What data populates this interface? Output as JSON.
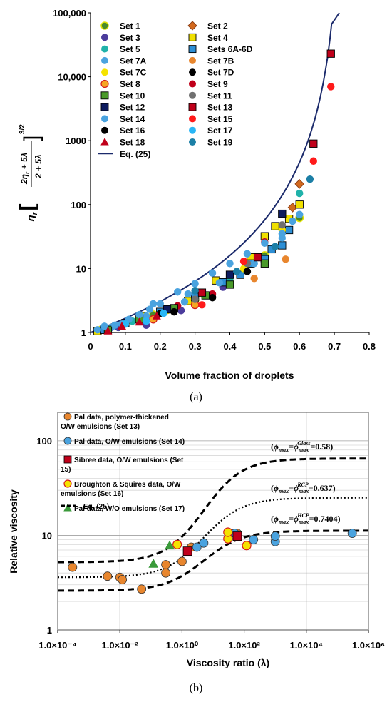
{
  "chart_data": [
    {
      "type": "scatter",
      "panel_label": "(a)",
      "xlabel": "Volume fraction of droplets",
      "ylabel_text": "η_r [(2η_r + 5λ)/(2 + 5λ)]^{3/2}",
      "xlim": [
        0,
        0.8
      ],
      "ylim": [
        1,
        100000
      ],
      "yscale": "log",
      "x_ticks": [
        "0",
        "0.1",
        "0.2",
        "0.3",
        "0.4",
        "0.5",
        "0.6",
        "0.7",
        "0.8"
      ],
      "y_ticks": [
        "1",
        "10",
        "100",
        "1000",
        "10,000",
        "100,000"
      ],
      "grid": false,
      "legend_position": "top-left inside",
      "series": [
        {
          "name": "Set 1",
          "color": "#4a8a2a",
          "marker": "circle-yellow",
          "points": [
            [
              0.03,
              1.1
            ],
            [
              0.18,
              1.9
            ],
            [
              0.3,
              3.2
            ],
            [
              0.4,
              6.1
            ],
            [
              0.5,
              16
            ],
            [
              0.6,
              62
            ]
          ]
        },
        {
          "name": "Set 2",
          "color": "#d2691e",
          "marker": "diamond",
          "points": [
            [
              0.6,
              210
            ],
            [
              0.58,
              90
            ]
          ]
        },
        {
          "name": "Set 3",
          "color": "#4b3c9c",
          "marker": "circle",
          "points": [
            [
              0.02,
              1.05
            ],
            [
              0.08,
              1.2
            ],
            [
              0.16,
              1.3
            ],
            [
              0.26,
              2.2
            ],
            [
              0.38,
              5.1
            ],
            [
              0.5,
              14
            ]
          ]
        },
        {
          "name": "Set 4",
          "color": "#f0e000",
          "marker": "square",
          "points": [
            [
              0.02,
              1.05
            ],
            [
              0.15,
              1.8
            ],
            [
              0.28,
              3.1
            ],
            [
              0.36,
              6.5
            ],
            [
              0.46,
              15
            ],
            [
              0.5,
              32
            ],
            [
              0.53,
              46
            ],
            [
              0.57,
              60
            ],
            [
              0.6,
              100
            ]
          ]
        },
        {
          "name": "Set 5",
          "color": "#20b2aa",
          "marker": "circle",
          "points": [
            [
              0.12,
              1.5
            ],
            [
              0.25,
              2.6
            ],
            [
              0.4,
              6.8
            ],
            [
              0.52,
              20
            ],
            [
              0.6,
              150
            ]
          ]
        },
        {
          "name": "Sets 6A-6D",
          "color": "#2d8fd5",
          "marker": "square",
          "points": [
            [
              0.04,
              1.1
            ],
            [
              0.1,
              1.4
            ],
            [
              0.2,
              2.1
            ],
            [
              0.3,
              3.6
            ],
            [
              0.38,
              6.1
            ],
            [
              0.43,
              8
            ],
            [
              0.46,
              12
            ],
            [
              0.5,
              14
            ],
            [
              0.52,
              20
            ],
            [
              0.55,
              23
            ],
            [
              0.57,
              40
            ]
          ]
        },
        {
          "name": "Set 7A",
          "color": "#4aa3df",
          "marker": "circle",
          "points": [
            [
              0.06,
              1.2
            ],
            [
              0.16,
              1.8
            ],
            [
              0.27,
              3
            ],
            [
              0.37,
              6
            ],
            [
              0.47,
              12
            ],
            [
              0.55,
              30
            ]
          ]
        },
        {
          "name": "Set 7B",
          "color": "#e8862e",
          "marker": "circle",
          "points": [
            [
              0.45,
              12
            ],
            [
              0.47,
              7
            ],
            [
              0.56,
              14
            ]
          ]
        },
        {
          "name": "Set 7C",
          "color": "#f5e300",
          "marker": "circle",
          "points": [
            [
              0.22,
              2.2
            ],
            [
              0.32,
              4
            ],
            [
              0.44,
              10
            ],
            [
              0.55,
              40
            ]
          ]
        },
        {
          "name": "Set 7D",
          "color": "#000000",
          "marker": "circle",
          "points": [
            [
              0.2,
              2
            ],
            [
              0.3,
              3.1
            ],
            [
              0.35,
              3.6
            ],
            [
              0.45,
              9
            ]
          ]
        },
        {
          "name": "Set 8",
          "color": "#f5a623",
          "marker": "circle-redrim",
          "points": [
            [
              0.18,
              1.6
            ],
            [
              0.3,
              2.7
            ]
          ]
        },
        {
          "name": "Set 9",
          "color": "#c0001a",
          "marker": "circle",
          "points": [
            [
              0.25,
              2.6
            ],
            [
              0.35,
              4
            ],
            [
              0.5,
              26
            ]
          ]
        },
        {
          "name": "Set 10",
          "color": "#4a9a2a",
          "marker": "square",
          "points": [
            [
              0.05,
              1.1
            ],
            [
              0.14,
              1.6
            ],
            [
              0.24,
              2.4
            ],
            [
              0.33,
              3.8
            ],
            [
              0.4,
              5.6
            ],
            [
              0.5,
              12
            ]
          ]
        },
        {
          "name": "Set 11",
          "color": "#707070",
          "marker": "circle",
          "points": [
            [
              0.3,
              3.3
            ],
            [
              0.45,
              12
            ],
            [
              0.55,
              48
            ]
          ]
        },
        {
          "name": "Set 12",
          "color": "#0d1b5e",
          "marker": "square",
          "points": [
            [
              0.22,
              2.3
            ],
            [
              0.4,
              8
            ],
            [
              0.55,
              72
            ]
          ]
        },
        {
          "name": "Set 13",
          "color": "#c0001a",
          "marker": "square",
          "points": [
            [
              0.32,
              4.2
            ],
            [
              0.48,
              15
            ],
            [
              0.64,
              900
            ],
            [
              0.69,
              23000
            ]
          ]
        },
        {
          "name": "Set 14",
          "color": "#4aa3df",
          "marker": "circle",
          "points": [
            [
              0.02,
              1.1
            ],
            [
              0.04,
              1.25
            ],
            [
              0.07,
              1.3
            ],
            [
              0.09,
              1.35
            ],
            [
              0.11,
              1.6
            ],
            [
              0.14,
              1.9
            ],
            [
              0.17,
              2.3
            ],
            [
              0.18,
              2.8
            ],
            [
              0.2,
              2.8
            ],
            [
              0.25,
              4.3
            ],
            [
              0.28,
              4
            ],
            [
              0.3,
              5.8
            ],
            [
              0.35,
              8.5
            ],
            [
              0.4,
              12
            ],
            [
              0.45,
              17
            ],
            [
              0.5,
              25
            ],
            [
              0.55,
              35
            ],
            [
              0.58,
              55
            ],
            [
              0.6,
              70
            ]
          ]
        },
        {
          "name": "Set 15",
          "color": "#ff1a1a",
          "marker": "circle",
          "points": [
            [
              0.32,
              2.7
            ],
            [
              0.44,
              13
            ],
            [
              0.64,
              480
            ],
            [
              0.69,
              7000
            ]
          ]
        },
        {
          "name": "Set 16",
          "color": "#000000",
          "marker": "circle",
          "points": [
            [
              0.24,
              2.1
            ],
            [
              0.35,
              3.5
            ]
          ]
        },
        {
          "name": "Set 17",
          "color": "#29b6f6",
          "marker": "circle",
          "points": [
            [
              0.1,
              1.35
            ],
            [
              0.16,
              1.5
            ],
            [
              0.21,
              2
            ]
          ]
        },
        {
          "name": "Set 18",
          "color": "#c0001a",
          "marker": "triangle",
          "points": [
            [
              0.05,
              1.05
            ],
            [
              0.09,
              1.25
            ],
            [
              0.14,
              1.45
            ],
            [
              0.19,
              1.8
            ]
          ]
        },
        {
          "name": "Set 19",
          "color": "#1c7fa6",
          "marker": "circle",
          "points": [
            [
              0.3,
              4.5
            ],
            [
              0.42,
              9
            ],
            [
              0.53,
              22
            ],
            [
              0.63,
              250
            ]
          ]
        }
      ],
      "curve": {
        "name": "Eq. (25)",
        "color": "#1b2a6b",
        "phi_max": 0.72
      }
    },
    {
      "type": "scatter",
      "panel_label": "(b)",
      "xlabel": "Viscosity ratio (λ)",
      "ylabel": "Relative viscosity",
      "xlim_log10": [
        -4,
        6
      ],
      "ylim": [
        1,
        200
      ],
      "xscale": "log",
      "yscale": "log",
      "x_ticks": [
        "1.0×10⁻⁴",
        "1.0×10⁻²",
        "1.0×10⁰",
        "1.0×10²",
        "1.0×10⁴",
        "1.0×10⁶"
      ],
      "y_ticks": [
        "1",
        "10",
        "100"
      ],
      "grid": true,
      "legend_position": "top-left inside",
      "series": [
        {
          "name": "Pal data, polymer-thickened O/W emulsions (Set 13)",
          "legend_lines": [
            "Pal data, polymer-thickened",
            "O/W emulsions (Set 13)"
          ],
          "color": "#e8862e",
          "marker": "circle",
          "points": [
            [
              0.0003,
              4.6
            ],
            [
              0.004,
              3.7
            ],
            [
              0.01,
              3.6
            ],
            [
              0.012,
              3.4
            ],
            [
              0.05,
              2.7
            ],
            [
              0.3,
              4.9
            ],
            [
              0.3,
              4.0
            ],
            [
              1,
              5.3
            ],
            [
              2,
              7.5
            ],
            [
              60,
              10.5
            ]
          ]
        },
        {
          "name": "Pal data, O/W emulsions (Set 14)",
          "legend_lines": [
            "Pal data, O/W emulsions (Set 14)"
          ],
          "color": "#4aa3df",
          "marker": "circle",
          "points": [
            [
              3,
              7.5
            ],
            [
              5,
              8.3
            ],
            [
              50,
              10.5
            ],
            [
              200,
              9
            ],
            [
              1000,
              8.6
            ],
            [
              1000,
              9.8
            ],
            [
              300000,
              10.5
            ]
          ]
        },
        {
          "name": "Sibree data, O/W emulsions (Set 15)",
          "legend_lines": [
            "Sibree data, O/W emulsions (Set",
            "15)"
          ],
          "color": "#c0001a",
          "marker": "square",
          "points": [
            [
              1.5,
              6.8
            ],
            [
              60,
              9.8
            ]
          ]
        },
        {
          "name": "Broughton & Squires data, O/W emulsions (Set 16)",
          "legend_lines": [
            "Broughton & Squires data, O/W",
            "emulsions (Set 16)"
          ],
          "color": "#f5e300",
          "marker": "circle-redrim",
          "points": [
            [
              0.7,
              8.0
            ],
            [
              30,
              9.2
            ],
            [
              30,
              10.8
            ],
            [
              120,
              7.8
            ]
          ]
        },
        {
          "name": "Pal data, W/O emulsions (Set 17)",
          "legend_lines": [
            "Pal data, W/O emulsions (Set 17)"
          ],
          "color": "#3a9a3a",
          "marker": "triangle",
          "points": [
            [
              0.12,
              5.0
            ],
            [
              0.4,
              7.8
            ]
          ]
        }
      ],
      "curves": [
        {
          "name": "Eq. (25)",
          "label": "(ϕmax=ϕmax^Glass=0.58)",
          "style": "dashed",
          "low": 5.2,
          "high": 65
        },
        {
          "name": "Eq. (25)",
          "label": "(ϕmax=ϕmax^RCP=0.637)",
          "style": "dotted",
          "low": 3.6,
          "high": 25
        },
        {
          "name": "Eq. (25)",
          "label": "(ϕmax=ϕmax^HCP=0.7404)",
          "style": "dashed",
          "low": 2.6,
          "high": 11.2
        }
      ],
      "legend_curve_label": "Eq. (25)"
    }
  ]
}
